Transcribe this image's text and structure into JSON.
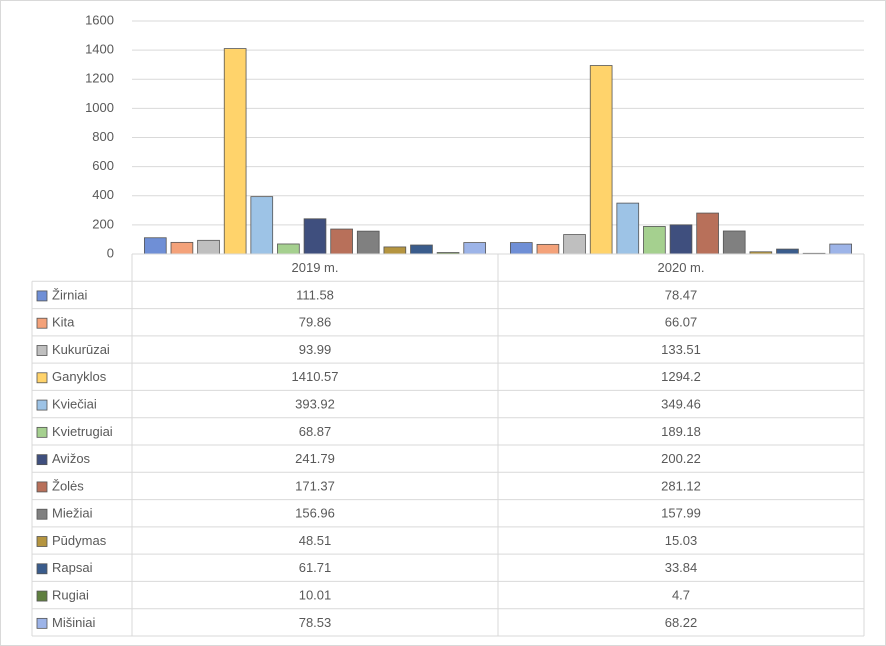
{
  "chart_data": {
    "type": "bar",
    "categories": [
      "2019 m.",
      "2020 m."
    ],
    "series": [
      {
        "name": "Žirniai",
        "color": "#6f8fd6",
        "values": [
          111.58,
          78.47
        ]
      },
      {
        "name": "Kita",
        "color": "#f4a27a",
        "values": [
          79.86,
          66.07
        ]
      },
      {
        "name": "Kukurūzai",
        "color": "#bfbfbf",
        "values": [
          93.99,
          133.51
        ]
      },
      {
        "name": "Ganyklos",
        "color": "#ffd36b",
        "values": [
          1410.57,
          1294.2
        ]
      },
      {
        "name": "Kviečiai",
        "color": "#9dc3e6",
        "values": [
          393.92,
          349.46
        ]
      },
      {
        "name": "Kvietrugiai",
        "color": "#a5d08f",
        "values": [
          68.87,
          189.18
        ]
      },
      {
        "name": "Avižos",
        "color": "#3f4f7e",
        "values": [
          241.79,
          200.22
        ]
      },
      {
        "name": "Žolės",
        "color": "#b8705a",
        "values": [
          171.37,
          281.12
        ]
      },
      {
        "name": "Miežiai",
        "color": "#808080",
        "values": [
          156.96,
          157.99
        ]
      },
      {
        "name": "Pūdymas",
        "color": "#b59540",
        "values": [
          48.51,
          15.03
        ]
      },
      {
        "name": "Rapsai",
        "color": "#3a5c8c",
        "values": [
          61.71,
          33.84
        ]
      },
      {
        "name": "Rugiai",
        "color": "#5f7f3f",
        "values": [
          10.01,
          4.7
        ]
      },
      {
        "name": "Mišiniai",
        "color": "#9db4e8",
        "values": [
          78.53,
          68.22
        ]
      }
    ],
    "ylim": [
      0,
      1600
    ],
    "yticks": [
      0,
      200,
      400,
      600,
      800,
      1000,
      1200,
      1400,
      1600
    ],
    "grid": true
  }
}
